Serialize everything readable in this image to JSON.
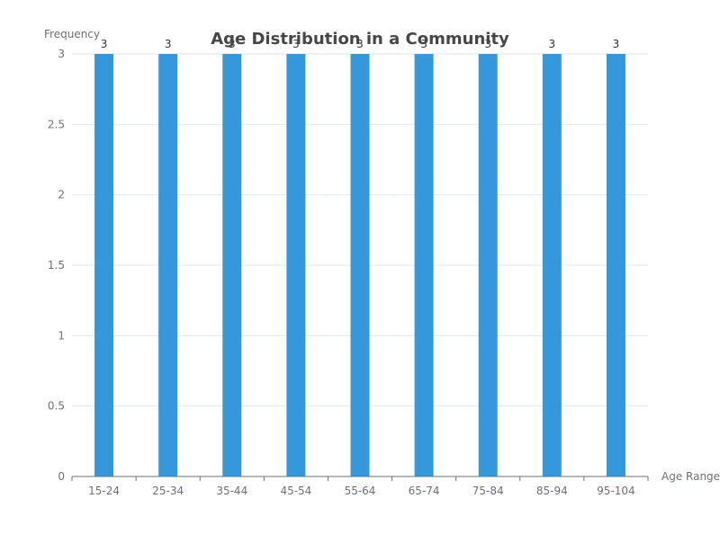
{
  "chart_data": {
    "type": "bar",
    "title": "Age Distribution in a Community",
    "xlabel": "Age Range",
    "ylabel": "Frequency",
    "categories": [
      "15-24",
      "25-34",
      "35-44",
      "45-54",
      "55-64",
      "65-74",
      "75-84",
      "85-94",
      "95-104"
    ],
    "values": [
      3,
      3,
      3,
      3,
      3,
      3,
      3,
      3,
      3
    ],
    "ylim": [
      0,
      3
    ],
    "yticks": [
      "0",
      "0.5",
      "1",
      "1.5",
      "2",
      "2.5",
      "3"
    ],
    "grid": true,
    "data_labels": true,
    "bar_color": "#3498db"
  }
}
